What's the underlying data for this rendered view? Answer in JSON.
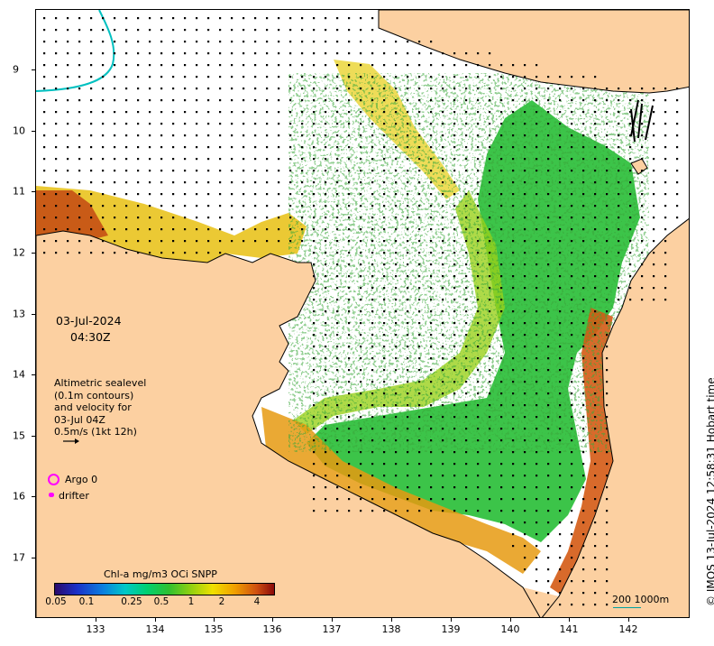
{
  "map": {
    "date": "03-Jul-2024",
    "time": "04:30Z",
    "lat_labels": [
      "9",
      "10",
      "11",
      "12",
      "13",
      "14",
      "15",
      "16",
      "17"
    ],
    "lon_labels": [
      "133",
      "134",
      "135",
      "136",
      "137",
      "138",
      "139",
      "140",
      "141",
      "142"
    ],
    "altimetry_lines": [
      "Altimetric sealevel",
      "(0.1m contours)",
      "and velocity for",
      "03-Jul 04Z",
      "0.5m/s (1kt 12h)"
    ],
    "legend": {
      "argo": "Argo 0",
      "drifter": "drifter"
    },
    "colorbar": {
      "title": "Chl-a mg/m3 OCi SNPP",
      "ticks": [
        "0.05",
        "0.1",
        "0.25",
        "0.5",
        "1",
        "2",
        "4"
      ]
    },
    "scalebar": "200  1000m",
    "credit": "© IMOS 13-Jul-2024 12:58:31 Hobart time",
    "colors": {
      "land": "#fcd0a1",
      "argo": "#ff00ff",
      "drifter": "#ff00ff"
    }
  }
}
